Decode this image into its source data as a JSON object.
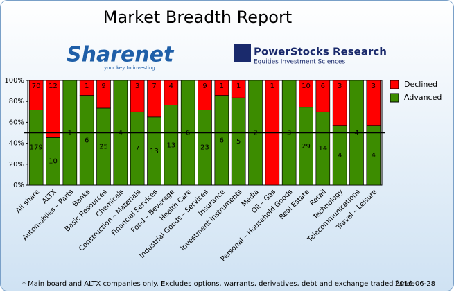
{
  "chart_data": {
    "type": "bar",
    "stacking": "percent",
    "title": "Market Breadth Report",
    "categories": [
      "All share",
      "ALTX",
      "Automobiles – Parts",
      "Banks",
      "Basic Resources",
      "Chemicals",
      "Construction – Materials",
      "Financial Services",
      "Food – Beverage",
      "Health Care",
      "Industrial Goods – Services",
      "Insurance",
      "Investment Instruments",
      "Media",
      "Oil – Gas",
      "Personal – Household Goods",
      "Real Estate",
      "Retail",
      "Technology",
      "Telecommunications",
      "Travel – Leisure"
    ],
    "series": [
      {
        "name": "Advanced",
        "color": "#3c8c00",
        "values": [
          179,
          10,
          1,
          6,
          25,
          4,
          7,
          13,
          13,
          6,
          23,
          6,
          5,
          2,
          0,
          3,
          29,
          14,
          4,
          4,
          4
        ]
      },
      {
        "name": "Declined",
        "color": "#ff0000",
        "values": [
          70,
          12,
          0,
          1,
          9,
          0,
          3,
          7,
          4,
          0,
          9,
          1,
          1,
          0,
          1,
          0,
          10,
          6,
          3,
          0,
          3
        ]
      }
    ],
    "ylim": [
      0,
      100
    ],
    "yticks": [
      {
        "value": 0,
        "label": "0%"
      },
      {
        "value": 20,
        "label": "20%"
      },
      {
        "value": 40,
        "label": "40%"
      },
      {
        "value": 60,
        "label": "60%"
      },
      {
        "value": 80,
        "label": "80%"
      },
      {
        "value": 100,
        "label": "100%"
      }
    ],
    "reference_line": 50,
    "legend": "right"
  },
  "logos": {
    "sharenet": "Sharenet",
    "sharenet_tagline": "your key to investing",
    "powerstocks": "PowerStocks Research",
    "powerstocks_tagline": "Equities Investment Sciences"
  },
  "footer": {
    "note": "* Main board and ALTX companies only. Excludes options, warrants, derivatives, debt and exchange traded funds",
    "date": "2016-06-28"
  }
}
